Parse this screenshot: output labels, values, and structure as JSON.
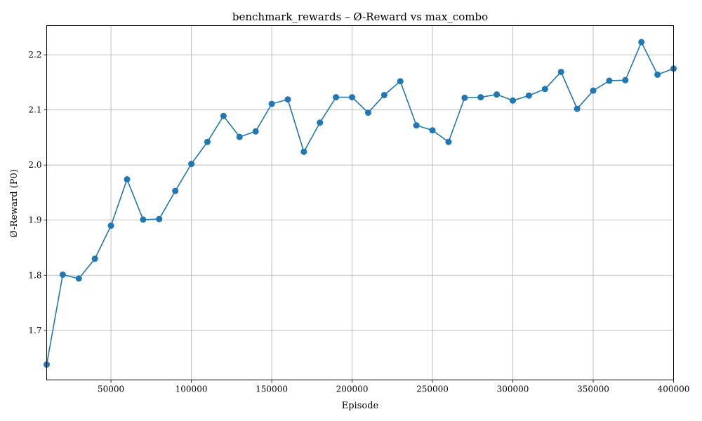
{
  "chart_data": {
    "type": "line",
    "title": "benchmark_rewards – Ø-Reward vs max_combo",
    "xlabel": "Episode",
    "ylabel": "Ø-Reward (P0)",
    "xlim": [
      10000,
      400000
    ],
    "ylim": [
      1.61,
      2.253
    ],
    "xticks": [
      50000,
      100000,
      150000,
      200000,
      250000,
      300000,
      350000,
      400000
    ],
    "yticks": [
      1.7,
      1.8,
      1.9,
      2.0,
      2.1,
      2.2
    ],
    "grid": true,
    "line_color": "#1f77b4",
    "x": [
      10000,
      20000,
      30000,
      40000,
      50000,
      60000,
      70000,
      80000,
      90000,
      100000,
      110000,
      120000,
      130000,
      140000,
      150000,
      160000,
      170000,
      180000,
      190000,
      200000,
      210000,
      220000,
      230000,
      240000,
      250000,
      260000,
      270000,
      280000,
      290000,
      300000,
      310000,
      320000,
      330000,
      340000,
      350000,
      360000,
      370000,
      380000,
      390000,
      400000
    ],
    "y": [
      1.638,
      1.801,
      1.794,
      1.83,
      1.89,
      1.974,
      1.901,
      1.902,
      1.953,
      2.002,
      2.042,
      2.089,
      2.051,
      2.061,
      2.111,
      2.119,
      2.024,
      2.077,
      2.123,
      2.123,
      2.095,
      2.127,
      2.152,
      2.072,
      2.063,
      2.042,
      2.122,
      2.123,
      2.128,
      2.117,
      2.126,
      2.138,
      2.169,
      2.102,
      2.135,
      2.153,
      2.154,
      2.223,
      2.164,
      2.175
    ]
  }
}
